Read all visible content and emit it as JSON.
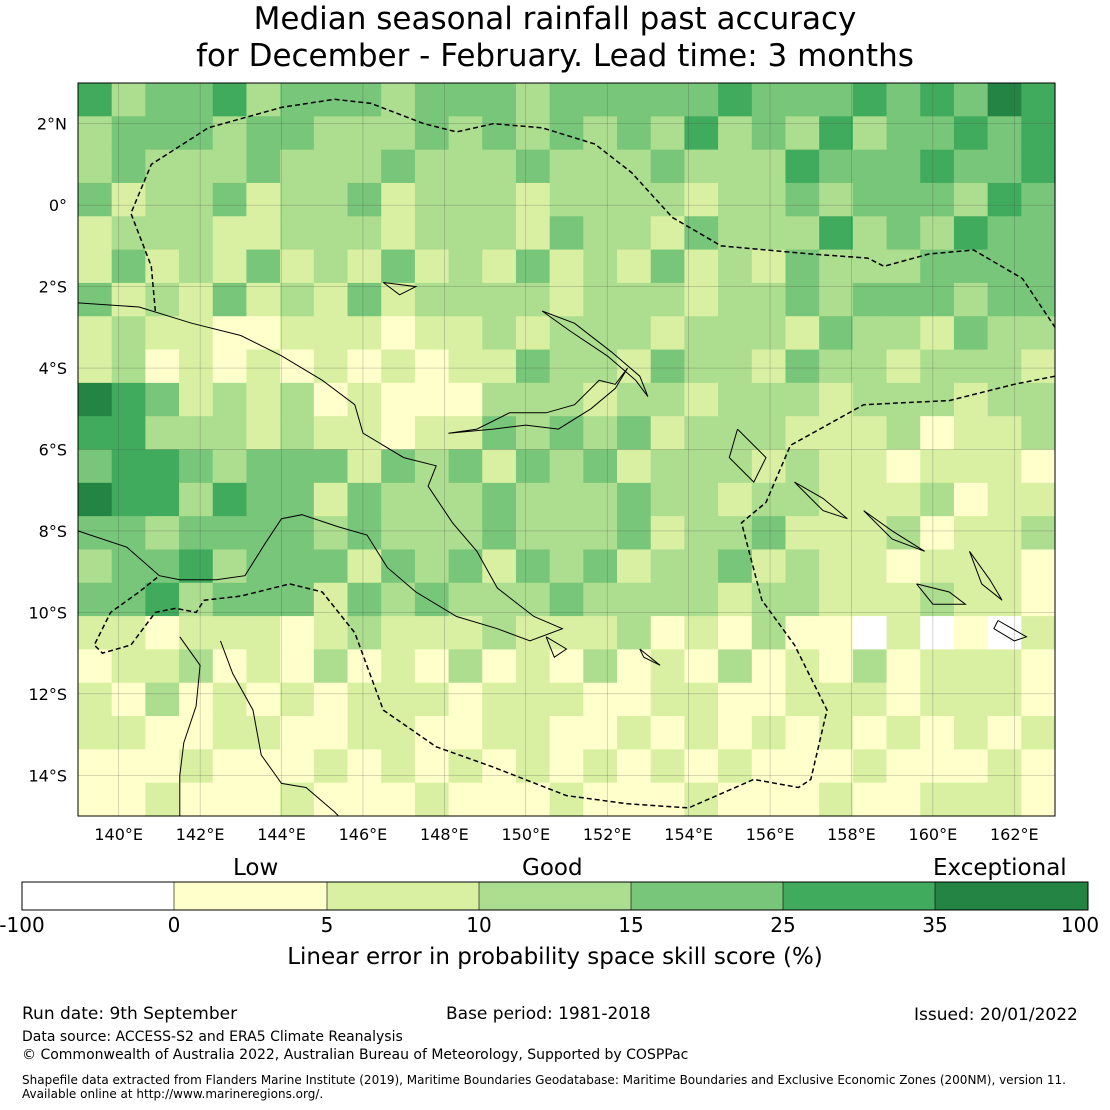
{
  "title_line1": "Median seasonal rainfall past accuracy",
  "title_line2": "for December - February. Lead time: 3 months",
  "map": {
    "lon_labels": [
      "140°E",
      "142°E",
      "144°E",
      "146°E",
      "148°E",
      "150°E",
      "152°E",
      "154°E",
      "156°E",
      "158°E",
      "160°E",
      "162°E"
    ],
    "lat_labels": [
      "2°N",
      "0°",
      "2°S",
      "4°S",
      "6°S",
      "8°S",
      "10°S",
      "12°S",
      "14°S"
    ],
    "extent": {
      "lon_min": 139.0,
      "lon_max": 163.0,
      "lat_min": -15.0,
      "lat_max": 3.0
    }
  },
  "colorbar": {
    "categories": [
      "Low",
      "Good",
      "Exceptional"
    ],
    "ticks": [
      "-100",
      "0",
      "5",
      "10",
      "15",
      "25",
      "35",
      "100"
    ],
    "colors": [
      "#ffffff",
      "#ffffcc",
      "#d9f0a3",
      "#addd8e",
      "#78c679",
      "#41ab5d",
      "#238443"
    ],
    "title": "Linear error in probability space skill score (%)"
  },
  "footer": {
    "run_date": "Run date: 9th September",
    "base_period": "Base period: 1981-2018",
    "issued": "Issued: 20/01/2022",
    "data_source": "Data source: ACCESS-S2 and ERA5 Climate Reanalysis",
    "copyright": "© Commonwealth of Australia 2022, Australian Bureau of Meteorology, Supported by COSPPac",
    "shapefile_line1": "Shapefile data extracted from Flanders Marine Institute (2019), Maritime Boundaries Geodatabase: Maritime Boundaries and Exclusive Economic Zones (200NM), version 11.",
    "shapefile_line2": "Available online at http://www.marineregions.org/."
  }
}
